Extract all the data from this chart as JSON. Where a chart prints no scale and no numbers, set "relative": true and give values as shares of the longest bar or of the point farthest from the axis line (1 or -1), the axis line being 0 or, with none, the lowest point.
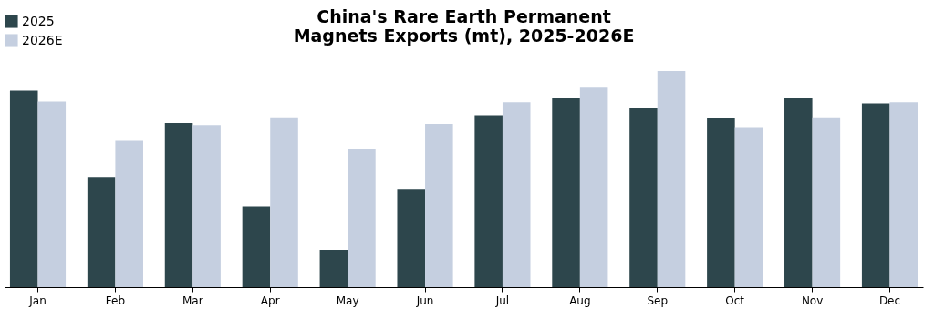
{
  "chart_data": {
    "type": "bar",
    "title": "China's Rare Earth Permanent Magnets Exports (mt), 2025-2026E",
    "relative": true,
    "grid": false,
    "legend": "top left",
    "categories": [
      "Jan",
      "Feb",
      "Mar",
      "Apr",
      "May",
      "Jun",
      "Jul",
      "Aug",
      "Sep",
      "Oct",
      "Nov",
      "Dec"
    ],
    "series": [
      {
        "name": "2025",
        "color": "#2d464c",
        "values": [
          0.909,
          0.509,
          0.759,
          0.373,
          0.173,
          0.455,
          0.795,
          0.877,
          0.827,
          0.782,
          0.877,
          0.85
        ]
      },
      {
        "name": "2026E",
        "color": "#c5cfe0",
        "values": [
          0.859,
          0.677,
          0.75,
          0.786,
          0.641,
          0.755,
          0.855,
          0.927,
          1,
          0.741,
          0.786,
          0.855
        ]
      }
    ]
  }
}
